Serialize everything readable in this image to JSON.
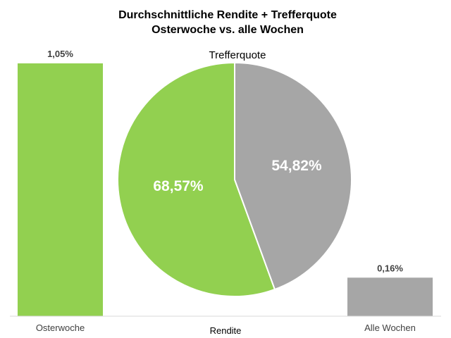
{
  "title": {
    "line1": "Durchschnittliche Rendite + Trefferquote",
    "line2": "Osterwoche vs. alle Wochen"
  },
  "chart_data": [
    {
      "type": "bar",
      "xlabel": "Rendite",
      "categories": [
        "Osterwoche",
        "Alle Wochen"
      ],
      "values": [
        1.05,
        0.16
      ],
      "value_labels": [
        "1,05%",
        "0,16%"
      ],
      "colors": [
        "#92d050",
        "#a6a6a6"
      ],
      "ylim": [
        0,
        1.05
      ],
      "grid": false
    },
    {
      "type": "pie",
      "title": "Trefferquote",
      "values": [
        68.57,
        54.82
      ],
      "value_labels": [
        "68,57%",
        "54,82%"
      ],
      "colors": [
        "#92d050",
        "#a6a6a6"
      ]
    }
  ]
}
